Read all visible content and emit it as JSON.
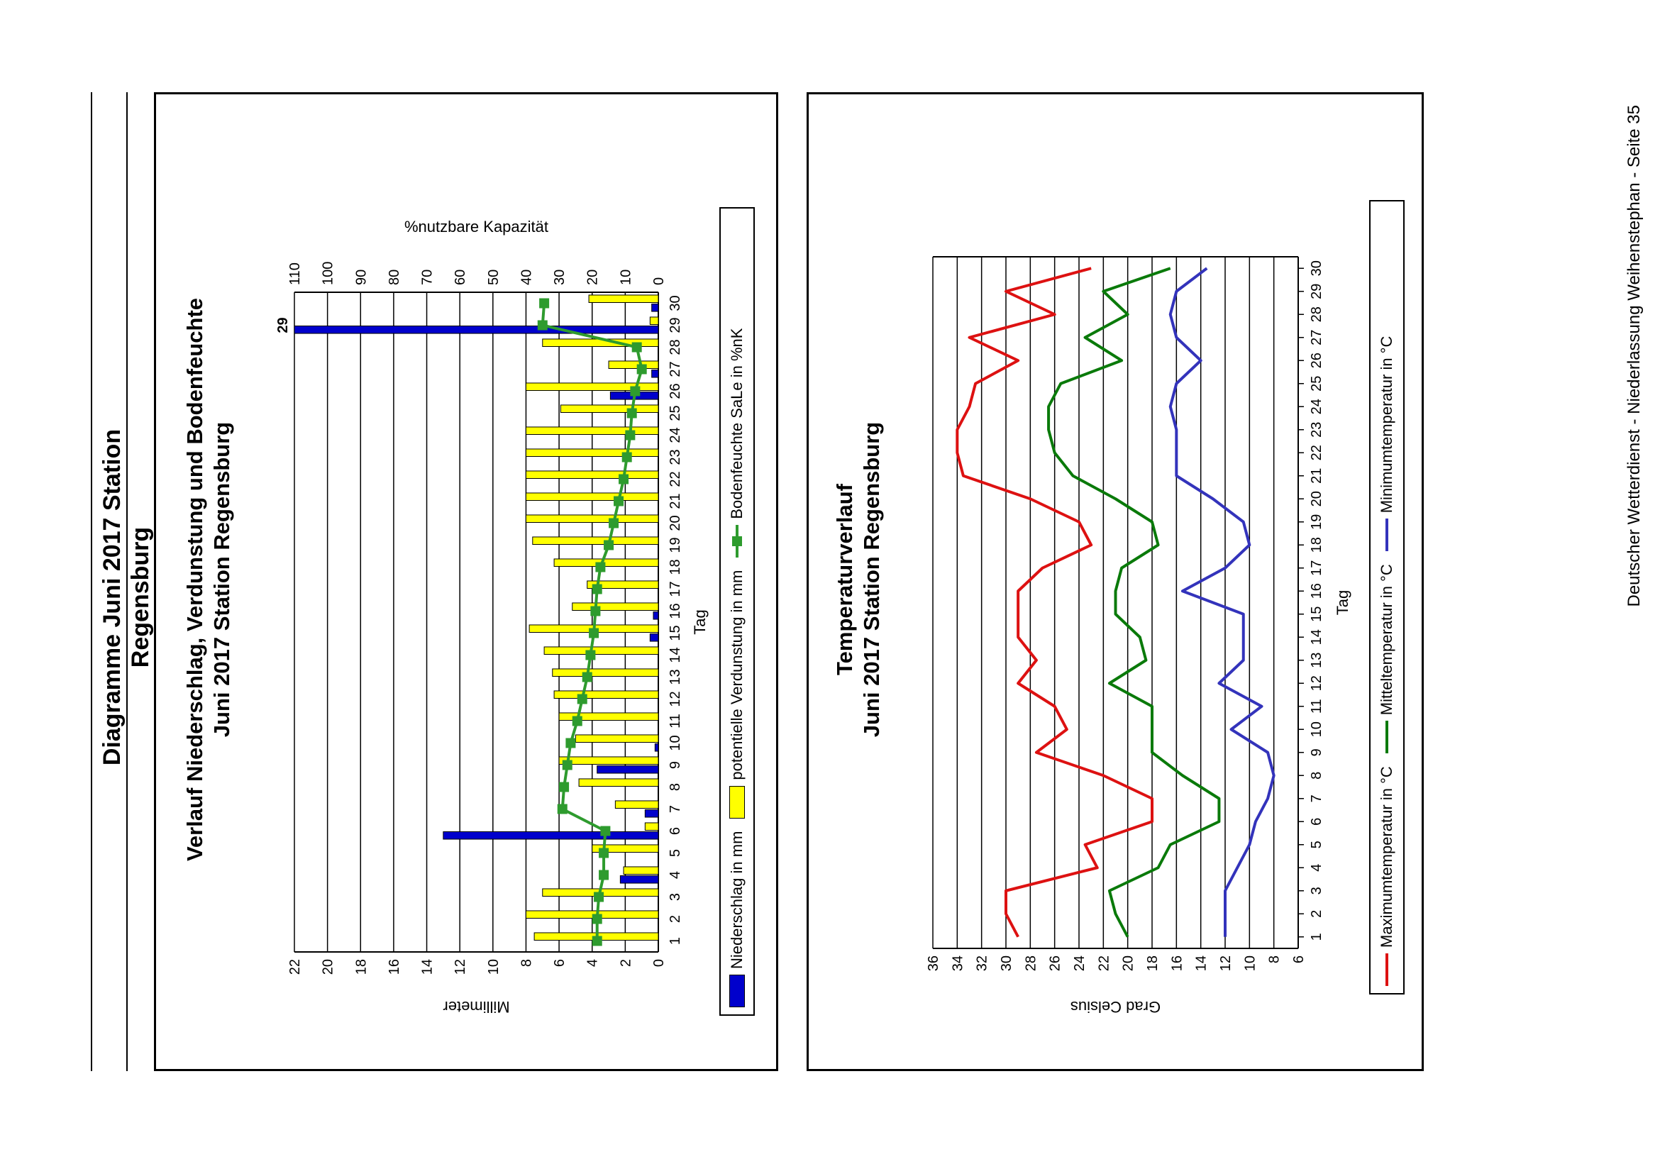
{
  "page": {
    "title": "Diagramme Juni 2017 Station Regensburg",
    "footer": "Deutscher Wetterdienst - Niederlassung Weihenstephan - Seite 35"
  },
  "colors": {
    "precip": "#0000cc",
    "evap": "#ffff00",
    "soil": "#2e9b2e",
    "tmax": "#dd1111",
    "tmean": "#0a7a0a",
    "tmin": "#3333bb"
  },
  "chart_data": [
    {
      "type": "bar",
      "title": "Verlauf Niederschlag, Verdunstung und Bodenfeuchte",
      "subtitle": "Juni 2017 Station Regensburg",
      "xlabel": "Tag",
      "ylabel": "Millimeter",
      "ylabel_right": "%nutzbare Kapazität",
      "ylim": [
        0,
        22
      ],
      "yticks": [
        0,
        2,
        4,
        6,
        8,
        10,
        12,
        14,
        16,
        18,
        20,
        22
      ],
      "ylim_right": [
        0,
        110
      ],
      "yticks_right": [
        0,
        10,
        20,
        30,
        40,
        50,
        60,
        70,
        80,
        90,
        100,
        110
      ],
      "grid": true,
      "legend_position": "bottom",
      "categories": [
        "1",
        "2",
        "3",
        "4",
        "5",
        "6",
        "7",
        "8",
        "9",
        "10",
        "11",
        "12",
        "13",
        "14",
        "15",
        "16",
        "17",
        "18",
        "19",
        "20",
        "21",
        "22",
        "23",
        "24",
        "25",
        "26",
        "27",
        "28",
        "29",
        "30"
      ],
      "clip_label": "29",
      "series": [
        {
          "name": "Niederschlag in mm",
          "kind": "bar",
          "values": [
            0,
            0,
            0,
            2.3,
            0,
            13,
            0.8,
            0,
            3.7,
            0.2,
            0,
            0,
            0,
            0,
            0.5,
            0.3,
            0,
            0,
            0,
            0,
            0,
            0,
            0,
            0,
            0,
            2.9,
            0.4,
            0,
            29,
            0.4
          ]
        },
        {
          "name": "potentielle Verdunstung in mm",
          "kind": "bar",
          "values": [
            7.5,
            8.0,
            7.0,
            2.1,
            4.0,
            0.8,
            2.6,
            4.8,
            6.0,
            5.0,
            6.0,
            6.3,
            6.4,
            6.9,
            7.8,
            5.2,
            4.3,
            6.3,
            7.6,
            8.0,
            8.0,
            8.0,
            8.0,
            8.0,
            5.9,
            8.0,
            3.0,
            7.0,
            0.5,
            4.2
          ]
        },
        {
          "name": "Bodenfeuchte SaLe in %nK",
          "kind": "line",
          "axis": "right",
          "values": [
            18.5,
            18.5,
            18.0,
            16.5,
            16.5,
            16.0,
            29.0,
            28.5,
            27.5,
            26.5,
            24.5,
            23.0,
            21.5,
            20.5,
            19.5,
            19.0,
            18.5,
            17.5,
            15.0,
            13.5,
            12.0,
            10.5,
            9.5,
            8.5,
            8.0,
            7.0,
            5.0,
            6.5,
            35.0,
            34.5
          ]
        }
      ]
    },
    {
      "type": "line",
      "title": "Temperaturverlauf",
      "subtitle": "Juni 2017 Station Regensburg",
      "xlabel": "Tag",
      "ylabel": "Grad Celsius",
      "ylim": [
        6,
        36
      ],
      "yticks": [
        6,
        8,
        10,
        12,
        14,
        16,
        18,
        20,
        22,
        24,
        26,
        28,
        30,
        32,
        34,
        36
      ],
      "grid": true,
      "legend_position": "bottom",
      "categories": [
        "1",
        "2",
        "3",
        "4",
        "5",
        "6",
        "7",
        "8",
        "9",
        "10",
        "11",
        "12",
        "13",
        "14",
        "15",
        "16",
        "17",
        "18",
        "19",
        "20",
        "21",
        "22",
        "23",
        "24",
        "25",
        "26",
        "27",
        "28",
        "29",
        "30"
      ],
      "series": [
        {
          "name": "Maximumtemperatur in °C",
          "values": [
            29.0,
            30.0,
            30.0,
            22.5,
            23.5,
            18.0,
            18.0,
            22.0,
            27.5,
            25.0,
            26.0,
            29.0,
            27.5,
            29.0,
            29.0,
            29.0,
            27.0,
            23.0,
            24.0,
            28.0,
            33.5,
            34.0,
            34.0,
            33.0,
            32.5,
            29.0,
            33.0,
            26.0,
            30.0,
            23.0
          ]
        },
        {
          "name": "Mitteltemperatur in °C",
          "values": [
            20.0,
            21.0,
            21.5,
            17.5,
            16.5,
            12.5,
            12.5,
            15.5,
            18.0,
            18.0,
            18.0,
            21.5,
            18.5,
            19.0,
            21.0,
            21.0,
            20.5,
            17.5,
            18.0,
            21.0,
            24.5,
            26.0,
            26.5,
            26.5,
            25.5,
            20.5,
            23.5,
            20.0,
            22.0,
            16.5
          ]
        },
        {
          "name": "Minimumtemperatur in °C",
          "values": [
            12.0,
            12.0,
            12.0,
            11.0,
            10.0,
            9.5,
            8.5,
            8.0,
            8.5,
            11.5,
            9.0,
            12.5,
            10.5,
            10.5,
            10.5,
            15.5,
            12.0,
            10.0,
            10.5,
            13.0,
            16.0,
            16.0,
            16.0,
            16.5,
            16.0,
            14.0,
            16.0,
            16.5,
            16.0,
            13.5
          ]
        }
      ]
    }
  ]
}
